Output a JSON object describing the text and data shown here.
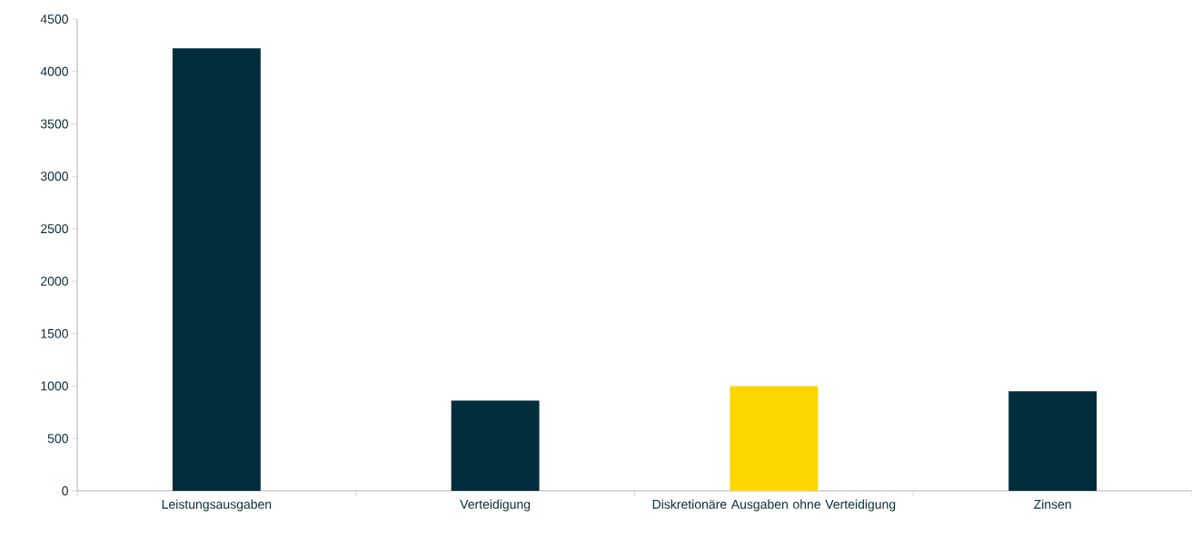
{
  "chart_data": {
    "type": "bar",
    "categories": [
      "Leistungsausgaben",
      "Verteidigung",
      "Diskretionäre Ausgaben ohne Verteidigung",
      "Zinsen"
    ],
    "values": [
      4220,
      860,
      1000,
      950
    ],
    "colors": [
      "#022d3c",
      "#022d3c",
      "#fdd600",
      "#022d3c"
    ],
    "ylim": [
      0,
      4500
    ],
    "yticks": [
      0,
      500,
      1000,
      1500,
      2000,
      2500,
      3000,
      3500,
      4000,
      4500
    ]
  }
}
